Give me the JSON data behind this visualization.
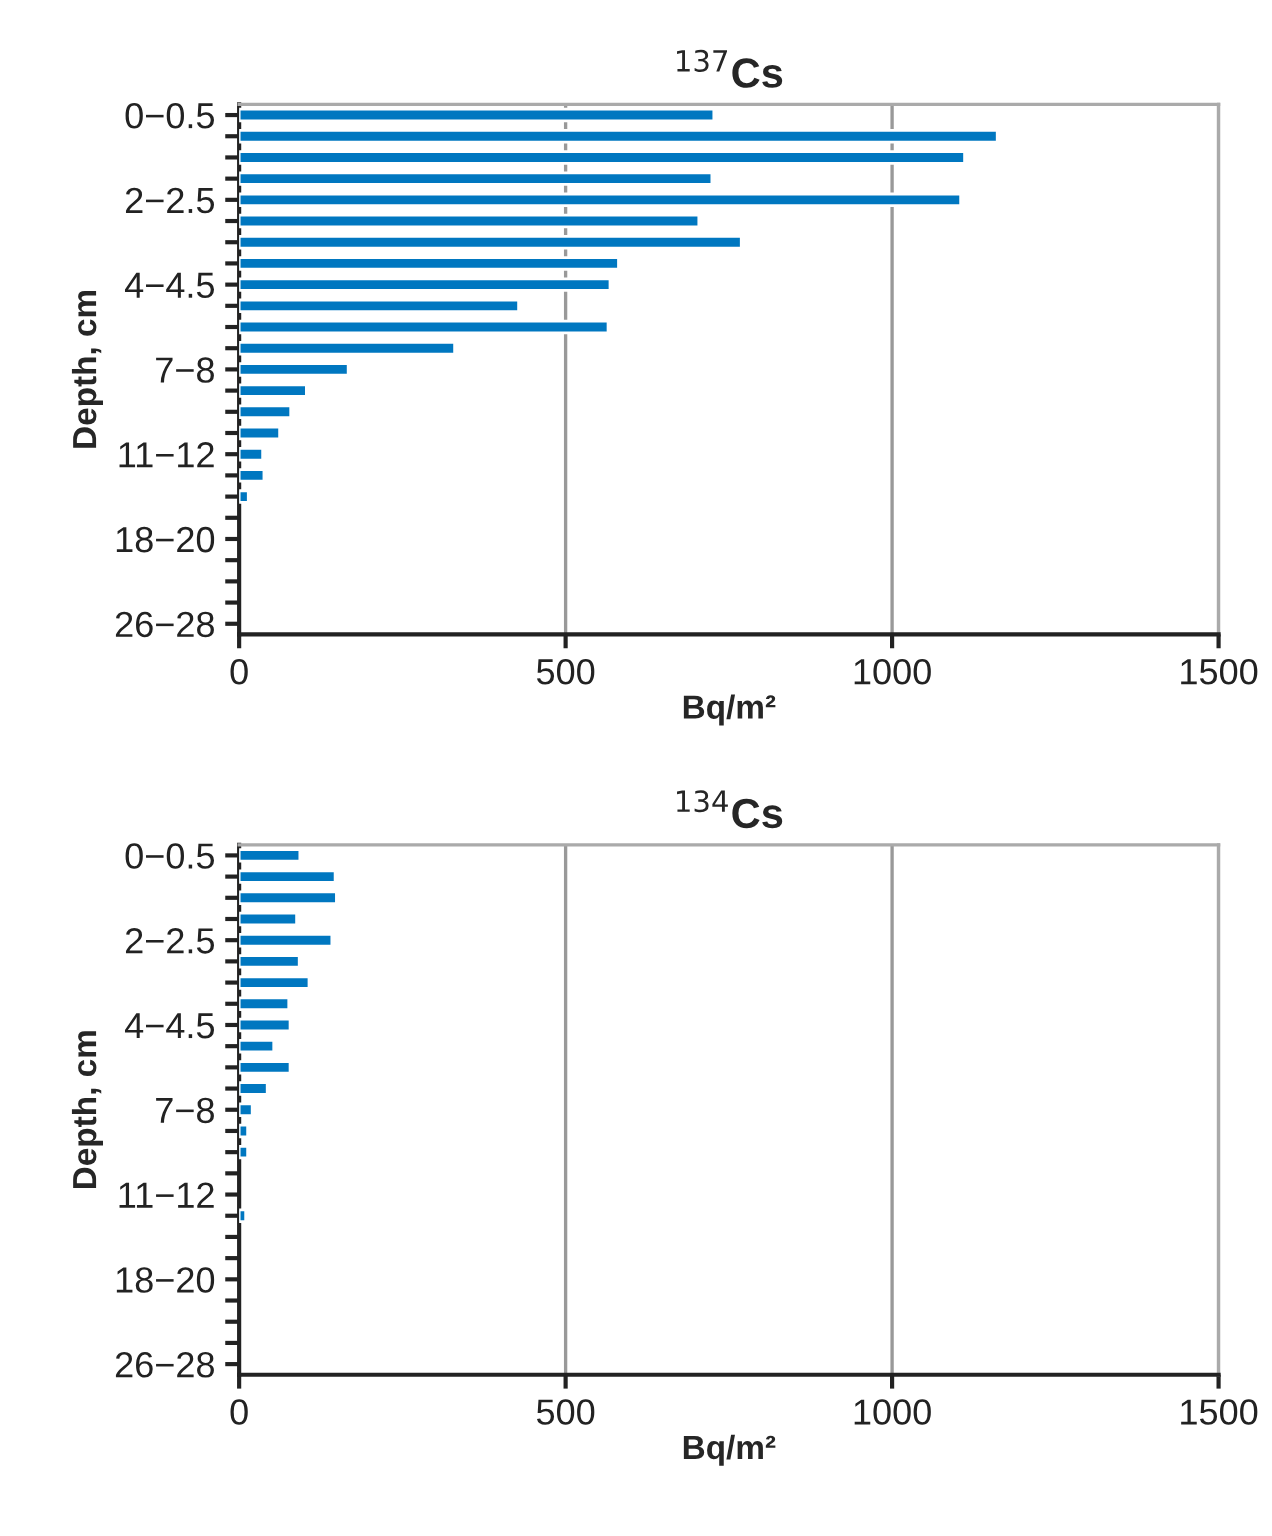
{
  "chart_data": [
    {
      "type": "bar",
      "orientation": "horizontal",
      "title": "$^{137}$Cs",
      "xlabel": "Bq/m²",
      "ylabel": "Depth, cm",
      "categories": [
        "0−0.5",
        null,
        null,
        null,
        "2−2.5",
        null,
        null,
        null,
        "4−4.5",
        null,
        null,
        null,
        "7−8",
        null,
        null,
        null,
        "11−12",
        null,
        null,
        null,
        "18−20",
        null,
        null,
        null,
        "26−28"
      ],
      "values": [
        727,
        1161,
        1111,
        724,
        1105,
        704,
        769,
        581,
        568,
        428,
        565,
        330,
        167,
        103,
        79,
        62,
        36,
        38,
        14,
        null,
        null,
        null,
        null,
        null,
        null
      ],
      "color": "#0077c0",
      "xlim": [
        0,
        1500
      ],
      "xticks": [
        0,
        500,
        1000,
        1500
      ],
      "grid": "x"
    },
    {
      "type": "bar",
      "orientation": "horizontal",
      "title": "$^{134}$Cs",
      "xlabel": "Bq/m²",
      "ylabel": "Depth, cm",
      "categories": [
        "0−0.5",
        null,
        null,
        null,
        "2−2.5",
        null,
        null,
        null,
        "4−4.5",
        null,
        null,
        null,
        "7−8",
        null,
        null,
        null,
        "11−12",
        null,
        null,
        null,
        "18−20",
        null,
        null,
        null,
        "26−28"
      ],
      "values": [
        93,
        147,
        149,
        88,
        142,
        92,
        107,
        76,
        78,
        53,
        78,
        43,
        20,
        13,
        13,
        null,
        null,
        10,
        null,
        null,
        null,
        null,
        null,
        null,
        null
      ],
      "color": "#0077c0",
      "xlim": [
        0,
        1500
      ],
      "xticks": [
        0,
        500,
        1000,
        1500
      ],
      "grid": "x"
    }
  ]
}
